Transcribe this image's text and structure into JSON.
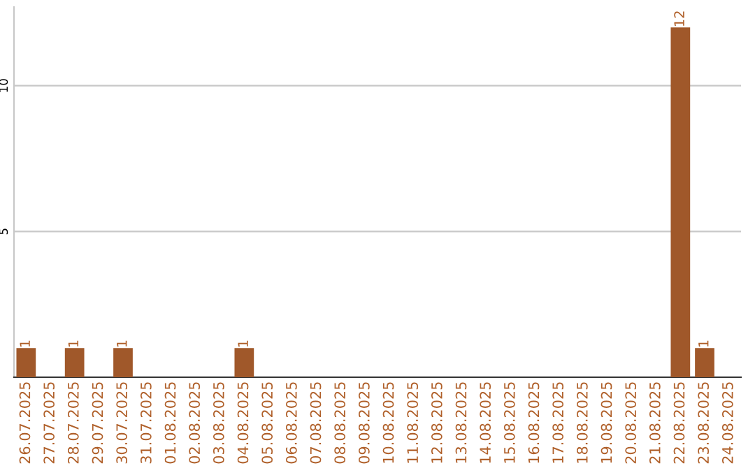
{
  "chart_data": {
    "type": "bar",
    "categories": [
      "26.07.2025",
      "27.07.2025",
      "28.07.2025",
      "29.07.2025",
      "30.07.2025",
      "31.07.2025",
      "01.08.2025",
      "02.08.2025",
      "03.08.2025",
      "04.08.2025",
      "05.08.2025",
      "06.08.2025",
      "07.08.2025",
      "08.08.2025",
      "09.08.2025",
      "10.08.2025",
      "11.08.2025",
      "12.08.2025",
      "13.08.2025",
      "14.08.2025",
      "15.08.2025",
      "16.08.2025",
      "17.08.2025",
      "18.08.2025",
      "19.08.2025",
      "20.08.2025",
      "21.08.2025",
      "22.08.2025",
      "23.08.2025",
      "24.08.2025"
    ],
    "values": [
      1,
      0,
      1,
      0,
      1,
      0,
      0,
      0,
      0,
      1,
      0,
      0,
      0,
      0,
      0,
      0,
      0,
      0,
      0,
      0,
      0,
      0,
      0,
      0,
      0,
      0,
      0,
      12,
      1,
      0
    ],
    "value_labels": [
      "1",
      null,
      "1",
      null,
      "1",
      null,
      null,
      null,
      null,
      "1",
      null,
      null,
      null,
      null,
      null,
      null,
      null,
      null,
      null,
      null,
      null,
      null,
      null,
      null,
      null,
      null,
      null,
      "12",
      "1",
      null
    ],
    "color": "#a0582a",
    "ylim": [
      0,
      12.7
    ],
    "yticks": [
      5,
      10
    ],
    "grid": "y"
  }
}
